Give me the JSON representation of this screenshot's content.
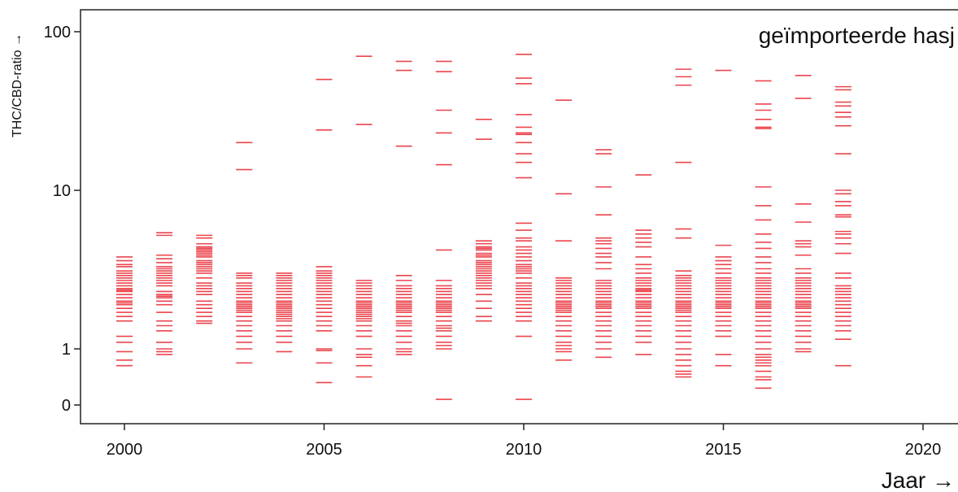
{
  "chart_data": {
    "type": "scatter",
    "marker": "horizontal-dash",
    "title": "",
    "annotation": "geïmporteerde hasj",
    "xlabel": "Jaar →",
    "ylabel": "THC/CBD-ratio →",
    "xlim": [
      1998.1,
      2021
    ],
    "xticks": [
      2000,
      2005,
      2010,
      2015,
      2020
    ],
    "yscale": "log (0 shown at bottom)",
    "yticks": [
      "0",
      "1",
      "10",
      "100"
    ],
    "grid": false,
    "legend": "none",
    "color": "#e8252f",
    "series": [
      {
        "x": 2000,
        "y": [
          3.8,
          3.6,
          3.4,
          3.3,
          3.1,
          3.0,
          2.9,
          2.8,
          2.7,
          2.6,
          2.5,
          2.4,
          2.35,
          2.3,
          2.2,
          2.1,
          2.0,
          1.95,
          1.9,
          1.8,
          1.7,
          1.6,
          1.5,
          1.2,
          1.1,
          0.95,
          0.8,
          0.7
        ]
      },
      {
        "x": 2001,
        "y": [
          5.4,
          5.2,
          3.9,
          3.7,
          3.5,
          3.3,
          3.2,
          3.1,
          3.0,
          2.9,
          2.8,
          2.7,
          2.6,
          2.5,
          2.3,
          2.2,
          2.15,
          2.1,
          2.0,
          1.9,
          1.7,
          1.5,
          1.4,
          1.3,
          1.1,
          1.0,
          0.95,
          0.9
        ]
      },
      {
        "x": 2002,
        "y": [
          5.2,
          5.0,
          4.6,
          4.4,
          4.3,
          4.2,
          4.1,
          4.0,
          3.9,
          3.8,
          3.6,
          3.5,
          3.4,
          3.3,
          3.2,
          3.1,
          3.0,
          2.8,
          2.6,
          2.5,
          2.4,
          2.3,
          2.2,
          2.0,
          1.9,
          1.8,
          1.7,
          1.6,
          1.5,
          1.45
        ]
      },
      {
        "x": 2003,
        "y": [
          20.0,
          13.5,
          3.0,
          2.9,
          2.8,
          2.6,
          2.5,
          2.4,
          2.3,
          2.2,
          2.1,
          2.0,
          1.95,
          1.9,
          1.85,
          1.8,
          1.75,
          1.7,
          1.6,
          1.5,
          1.4,
          1.3,
          1.2,
          1.1,
          1.0,
          0.75
        ]
      },
      {
        "x": 2004,
        "y": [
          3.0,
          2.9,
          2.8,
          2.7,
          2.6,
          2.5,
          2.4,
          2.3,
          2.2,
          2.1,
          2.0,
          1.95,
          1.9,
          1.85,
          1.8,
          1.75,
          1.7,
          1.65,
          1.6,
          1.55,
          1.5,
          1.4,
          1.3,
          1.2,
          1.1,
          0.95
        ]
      },
      {
        "x": 2005,
        "y": [
          50.0,
          24.0,
          3.3,
          3.1,
          3.0,
          2.9,
          2.8,
          2.7,
          2.6,
          2.5,
          2.4,
          2.3,
          2.2,
          2.1,
          2.0,
          1.9,
          1.8,
          1.7,
          1.6,
          1.5,
          1.4,
          1.3,
          1.0,
          0.97,
          0.75,
          0.4
        ]
      },
      {
        "x": 2006,
        "y": [
          70.0,
          26.0,
          2.7,
          2.6,
          2.5,
          2.4,
          2.3,
          2.2,
          2.1,
          2.0,
          1.95,
          1.9,
          1.85,
          1.8,
          1.75,
          1.7,
          1.65,
          1.6,
          1.55,
          1.5,
          1.4,
          1.3,
          1.2,
          1.0,
          0.9,
          0.85,
          0.7,
          0.5
        ]
      },
      {
        "x": 2007,
        "y": [
          65.0,
          57.0,
          19.0,
          2.9,
          2.7,
          2.5,
          2.4,
          2.3,
          2.2,
          2.1,
          2.0,
          1.95,
          1.9,
          1.85,
          1.8,
          1.75,
          1.7,
          1.6,
          1.5,
          1.45,
          1.4,
          1.3,
          1.2,
          1.1,
          1.0,
          0.95,
          0.9
        ]
      },
      {
        "x": 2008,
        "y": [
          65.0,
          56.0,
          32.0,
          23.0,
          14.5,
          4.2,
          2.7,
          2.5,
          2.4,
          2.3,
          2.2,
          2.1,
          2.0,
          1.95,
          1.9,
          1.85,
          1.8,
          1.75,
          1.7,
          1.6,
          1.5,
          1.4,
          1.35,
          1.3,
          1.2,
          1.1,
          1.05,
          1.0,
          0.1
        ]
      },
      {
        "x": 2009,
        "y": [
          28.0,
          21.0,
          4.8,
          4.6,
          4.4,
          4.3,
          4.2,
          4.0,
          3.9,
          3.8,
          3.6,
          3.5,
          3.4,
          3.3,
          3.2,
          3.1,
          3.0,
          2.9,
          2.8,
          2.7,
          2.6,
          2.5,
          2.4,
          2.2,
          2.0,
          1.8,
          1.6,
          1.5
        ]
      },
      {
        "x": 2010,
        "y": [
          72.0,
          51.0,
          47.0,
          30.0,
          25.0,
          23.0,
          22.5,
          20.0,
          17.0,
          15.0,
          12.0,
          6.2,
          5.6,
          5.0,
          4.8,
          4.4,
          4.2,
          4.0,
          3.8,
          3.6,
          3.4,
          3.3,
          3.2,
          3.1,
          3.0,
          2.8,
          2.6,
          2.5,
          2.4,
          2.3,
          2.2,
          2.1,
          2.0,
          1.9,
          1.8,
          1.7,
          1.6,
          1.5,
          1.2,
          0.1
        ]
      },
      {
        "x": 2011,
        "y": [
          37.0,
          9.5,
          4.8,
          2.8,
          2.7,
          2.6,
          2.5,
          2.4,
          2.3,
          2.2,
          2.1,
          2.0,
          1.95,
          1.9,
          1.85,
          1.8,
          1.75,
          1.7,
          1.6,
          1.5,
          1.4,
          1.3,
          1.2,
          1.1,
          1.05,
          1.0,
          0.95,
          0.8
        ]
      },
      {
        "x": 2012,
        "y": [
          18.0,
          17.0,
          10.5,
          7.0,
          5.0,
          4.8,
          4.6,
          4.3,
          4.0,
          3.8,
          3.5,
          3.2,
          2.7,
          2.6,
          2.5,
          2.4,
          2.3,
          2.2,
          2.1,
          2.0,
          1.95,
          1.9,
          1.85,
          1.8,
          1.7,
          1.6,
          1.5,
          1.4,
          1.3,
          1.2,
          1.1,
          1.0,
          0.85
        ]
      },
      {
        "x": 2013,
        "y": [
          12.5,
          5.6,
          5.3,
          5.0,
          4.7,
          4.4,
          3.8,
          3.4,
          3.2,
          3.0,
          2.8,
          2.7,
          2.6,
          2.5,
          2.4,
          2.35,
          2.3,
          2.2,
          2.1,
          2.0,
          1.95,
          1.9,
          1.85,
          1.8,
          1.7,
          1.6,
          1.5,
          1.4,
          1.3,
          1.2,
          1.1,
          0.9
        ]
      },
      {
        "x": 2014,
        "y": [
          58.0,
          52.0,
          46.0,
          15.0,
          5.7,
          5.0,
          3.1,
          2.9,
          2.8,
          2.7,
          2.6,
          2.5,
          2.4,
          2.3,
          2.2,
          2.1,
          2.0,
          1.95,
          1.9,
          1.85,
          1.8,
          1.75,
          1.7,
          1.6,
          1.5,
          1.4,
          1.3,
          1.2,
          1.1,
          1.0,
          0.9,
          0.8,
          0.7,
          0.6,
          0.55,
          0.5
        ]
      },
      {
        "x": 2015,
        "y": [
          57.0,
          4.5,
          3.8,
          3.6,
          3.4,
          3.2,
          3.0,
          2.8,
          2.7,
          2.6,
          2.5,
          2.4,
          2.3,
          2.2,
          2.1,
          2.0,
          1.95,
          1.9,
          1.85,
          1.8,
          1.7,
          1.6,
          1.5,
          1.4,
          1.3,
          1.2,
          0.9,
          0.7
        ]
      },
      {
        "x": 2016,
        "y": [
          49.0,
          35.0,
          32.0,
          28.0,
          25.0,
          24.5,
          10.5,
          8.0,
          6.5,
          5.3,
          4.7,
          4.3,
          3.8,
          3.5,
          3.2,
          3.0,
          2.8,
          2.7,
          2.6,
          2.5,
          2.4,
          2.3,
          2.2,
          2.1,
          2.0,
          1.95,
          1.9,
          1.85,
          1.8,
          1.7,
          1.6,
          1.5,
          1.4,
          1.3,
          1.2,
          1.1,
          1.0,
          0.9,
          0.85,
          0.8,
          0.75,
          0.7,
          0.6,
          0.5,
          0.45,
          0.3
        ]
      },
      {
        "x": 2017,
        "y": [
          53.0,
          38.0,
          8.2,
          6.3,
          4.8,
          4.6,
          4.4,
          3.9,
          3.2,
          3.0,
          2.8,
          2.7,
          2.6,
          2.5,
          2.4,
          2.3,
          2.2,
          2.1,
          2.0,
          1.95,
          1.9,
          1.85,
          1.8,
          1.7,
          1.6,
          1.5,
          1.4,
          1.3,
          1.2,
          1.1,
          1.0,
          0.95
        ]
      },
      {
        "x": 2018,
        "y": [
          45.0,
          43.0,
          36.0,
          34.0,
          31.0,
          29.0,
          25.5,
          17.0,
          10.0,
          9.5,
          8.5,
          8.0,
          7.0,
          6.8,
          5.5,
          5.3,
          5.0,
          4.6,
          4.0,
          3.0,
          2.8,
          2.5,
          2.4,
          2.3,
          2.2,
          2.1,
          2.0,
          1.9,
          1.8,
          1.7,
          1.6,
          1.5,
          1.4,
          1.3,
          1.15,
          0.7
        ]
      }
    ]
  }
}
